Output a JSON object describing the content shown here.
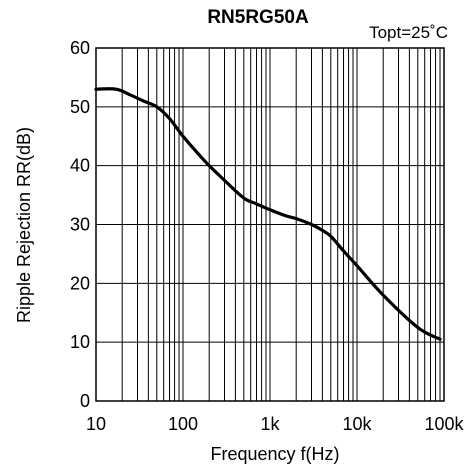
{
  "chart_data": {
    "type": "line",
    "title": "RN5RG50A",
    "annotation": "Topt=25˚C",
    "xlabel": "Frequency f(Hz)",
    "ylabel": "Ripple Rejection RR(dB)",
    "x_scale": "log",
    "xlim": [
      10,
      100000
    ],
    "ylim": [
      0,
      60
    ],
    "grid": true,
    "x_ticks": [
      {
        "value": 10,
        "label": "10"
      },
      {
        "value": 100,
        "label": "100"
      },
      {
        "value": 1000,
        "label": "1k"
      },
      {
        "value": 10000,
        "label": "10k"
      },
      {
        "value": 100000,
        "label": "100k"
      }
    ],
    "y_ticks": [
      {
        "value": 0,
        "label": "0"
      },
      {
        "value": 10,
        "label": "10"
      },
      {
        "value": 20,
        "label": "20"
      },
      {
        "value": 30,
        "label": "30"
      },
      {
        "value": 40,
        "label": "40"
      },
      {
        "value": 50,
        "label": "50"
      },
      {
        "value": 60,
        "label": "60"
      }
    ],
    "series": [
      {
        "x": [
          10,
          17,
          25,
          35,
          50,
          70,
          100,
          150,
          200,
          300,
          500,
          700,
          1000,
          1500,
          2000,
          3000,
          4000,
          5000,
          7000,
          10000,
          20000,
          50000,
          90000
        ],
        "y": [
          53,
          53,
          52,
          51,
          50,
          48,
          45,
          42,
          40,
          37.5,
          34.5,
          33.5,
          32.5,
          31.5,
          31,
          30,
          29,
          28,
          25.5,
          23,
          18,
          12.5,
          10.5
        ]
      }
    ]
  }
}
